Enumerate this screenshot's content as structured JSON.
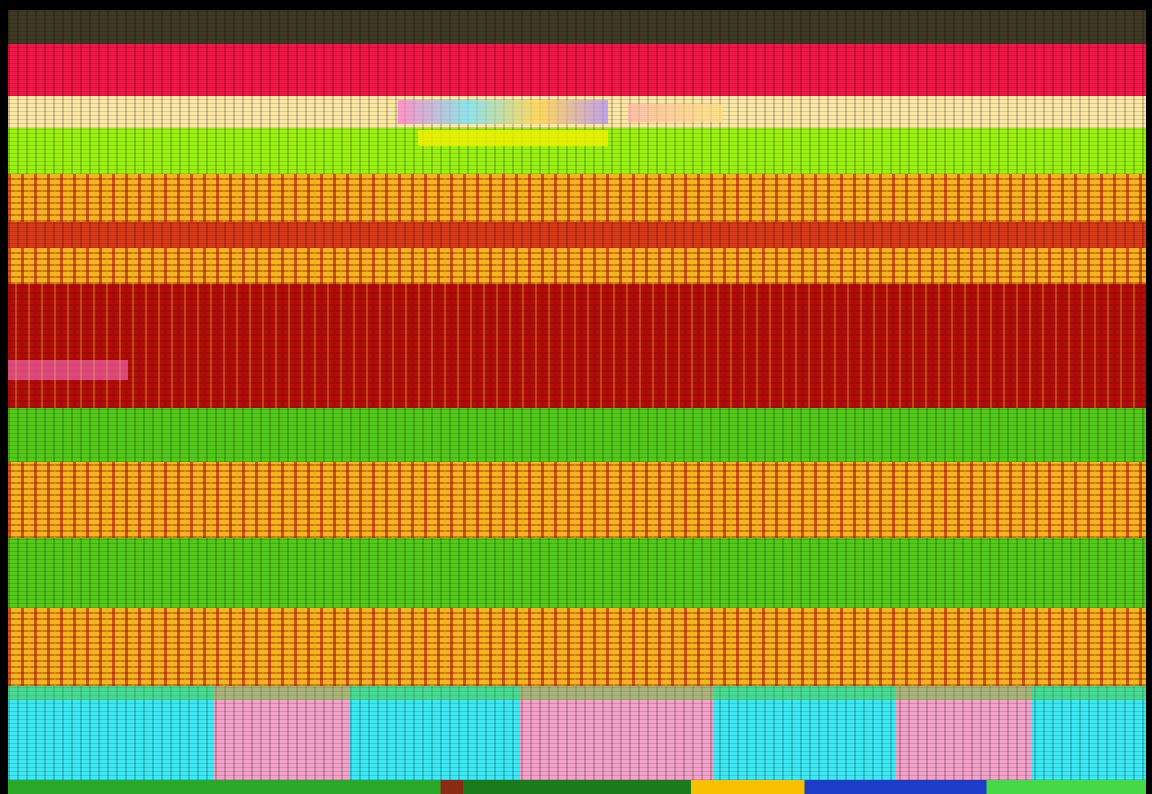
{
  "palette": {
    "background": "#000000",
    "olive": "#3f3a24",
    "crimson": "#ef1846",
    "cream": "#fbe7a6",
    "lime": "#9bf214",
    "green": "#55c81e",
    "orange": "#f6b51f",
    "dark_red": "#b30f0a",
    "cyan": "#3fe8f3",
    "pink": "#f3a2c9",
    "blue": "#1d3cc8"
  }
}
